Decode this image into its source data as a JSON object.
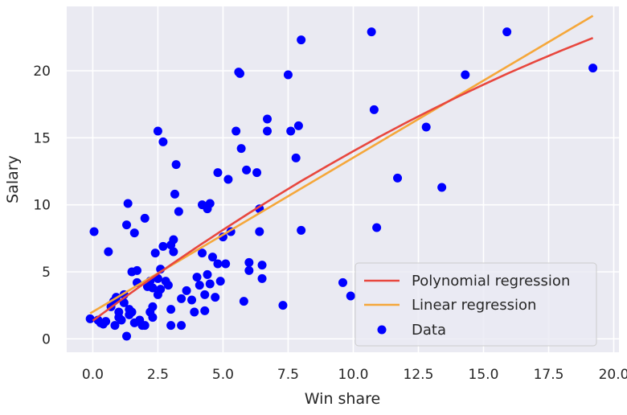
{
  "chart_data": {
    "type": "scatter",
    "xlabel": "Win share",
    "ylabel": "Salary",
    "xlim": [
      -1.0,
      20.2
    ],
    "ylim": [
      -1.0,
      24.8
    ],
    "x_ticks": [
      0.0,
      2.5,
      5.0,
      7.5,
      10.0,
      12.5,
      15.0,
      17.5,
      20.0
    ],
    "x_tick_labels": [
      "0.0",
      "2.5",
      "5.0",
      "7.5",
      "10.0",
      "12.5",
      "15.0",
      "17.5",
      "20.0"
    ],
    "y_ticks": [
      0,
      5,
      10,
      15,
      20
    ],
    "y_tick_labels": [
      "0",
      "5",
      "10",
      "15",
      "20"
    ],
    "grid": true,
    "legend_position": "bottom-right",
    "colors": {
      "background": "#eaeaf2",
      "grid": "#ffffff",
      "data": "#0000ff",
      "polynomial": "#e8473e",
      "linear": "#f5a73a"
    },
    "series": [
      {
        "name": "Polynomial regression",
        "type": "line",
        "x": [
          0,
          1,
          2,
          3,
          4,
          5,
          6,
          7,
          8,
          9,
          10,
          11,
          12,
          13,
          14,
          15,
          16,
          17,
          18,
          19.2
        ],
        "y": [
          1.35,
          2.78,
          4.17,
          5.53,
          6.85,
          8.13,
          9.38,
          10.59,
          11.77,
          12.9,
          14.0,
          15.07,
          16.1,
          17.09,
          18.05,
          18.97,
          19.86,
          20.7,
          21.52,
          22.45
        ]
      },
      {
        "name": "Linear regression",
        "type": "line",
        "x": [
          -0.1,
          19.2
        ],
        "y": [
          1.9,
          24.1
        ]
      },
      {
        "name": "Data",
        "type": "scatter",
        "points": [
          [
            -0.1,
            1.5
          ],
          [
            0.05,
            8.0
          ],
          [
            0.2,
            1.4
          ],
          [
            0.3,
            1.2
          ],
          [
            0.4,
            1.1
          ],
          [
            0.5,
            1.3
          ],
          [
            0.6,
            6.5
          ],
          [
            0.7,
            2.4
          ],
          [
            0.8,
            2.8
          ],
          [
            0.85,
            1.0
          ],
          [
            0.9,
            3.1
          ],
          [
            1.0,
            1.6
          ],
          [
            1.0,
            2.0
          ],
          [
            1.1,
            1.4
          ],
          [
            1.2,
            2.7
          ],
          [
            1.2,
            3.3
          ],
          [
            1.3,
            8.5
          ],
          [
            1.3,
            0.2
          ],
          [
            1.35,
            10.1
          ],
          [
            1.4,
            2.2
          ],
          [
            1.4,
            1.8
          ],
          [
            1.5,
            2.0
          ],
          [
            1.5,
            5.0
          ],
          [
            1.6,
            1.2
          ],
          [
            1.6,
            7.9
          ],
          [
            1.7,
            5.1
          ],
          [
            1.7,
            4.2
          ],
          [
            1.8,
            1.4
          ],
          [
            1.9,
            1.0
          ],
          [
            2.0,
            1.0
          ],
          [
            2.0,
            9.0
          ],
          [
            2.1,
            3.9
          ],
          [
            2.2,
            4.3
          ],
          [
            2.2,
            2.0
          ],
          [
            2.3,
            1.6
          ],
          [
            2.3,
            2.4
          ],
          [
            2.3,
            3.8
          ],
          [
            2.4,
            6.4
          ],
          [
            2.5,
            3.3
          ],
          [
            2.5,
            4.5
          ],
          [
            2.5,
            15.5
          ],
          [
            2.6,
            5.2
          ],
          [
            2.6,
            3.7
          ],
          [
            2.7,
            14.7
          ],
          [
            2.7,
            6.9
          ],
          [
            2.8,
            4.3
          ],
          [
            2.9,
            4.0
          ],
          [
            3.0,
            2.2
          ],
          [
            3.0,
            1.0
          ],
          [
            3.0,
            7.0
          ],
          [
            3.1,
            7.4
          ],
          [
            3.1,
            6.5
          ],
          [
            3.15,
            10.8
          ],
          [
            3.2,
            13.0
          ],
          [
            3.3,
            9.5
          ],
          [
            3.4,
            3.0
          ],
          [
            3.4,
            1.0
          ],
          [
            3.6,
            3.6
          ],
          [
            3.8,
            2.9
          ],
          [
            3.9,
            2.0
          ],
          [
            4.0,
            4.6
          ],
          [
            4.1,
            4.0
          ],
          [
            4.2,
            6.4
          ],
          [
            4.2,
            10.0
          ],
          [
            4.3,
            3.3
          ],
          [
            4.3,
            2.1
          ],
          [
            4.4,
            9.7
          ],
          [
            4.4,
            4.8
          ],
          [
            4.5,
            10.1
          ],
          [
            4.5,
            4.1
          ],
          [
            4.6,
            6.1
          ],
          [
            4.7,
            3.1
          ],
          [
            4.8,
            5.6
          ],
          [
            4.8,
            12.4
          ],
          [
            4.9,
            4.3
          ],
          [
            5.0,
            7.6
          ],
          [
            5.1,
            5.6
          ],
          [
            5.2,
            11.9
          ],
          [
            5.3,
            8.0
          ],
          [
            5.5,
            15.5
          ],
          [
            5.6,
            19.9
          ],
          [
            5.65,
            19.8
          ],
          [
            5.7,
            14.2
          ],
          [
            5.8,
            2.8
          ],
          [
            5.9,
            12.6
          ],
          [
            6.0,
            5.7
          ],
          [
            6.0,
            5.1
          ],
          [
            6.3,
            12.4
          ],
          [
            6.4,
            9.7
          ],
          [
            6.4,
            8.0
          ],
          [
            6.5,
            5.5
          ],
          [
            6.5,
            4.5
          ],
          [
            6.7,
            16.4
          ],
          [
            6.7,
            15.5
          ],
          [
            7.3,
            2.5
          ],
          [
            7.5,
            19.7
          ],
          [
            7.6,
            15.5
          ],
          [
            7.8,
            13.5
          ],
          [
            7.9,
            15.9
          ],
          [
            8.0,
            8.1
          ],
          [
            8.0,
            22.3
          ],
          [
            9.6,
            4.2
          ],
          [
            9.9,
            3.2
          ],
          [
            10.7,
            22.9
          ],
          [
            10.8,
            17.1
          ],
          [
            10.9,
            8.3
          ],
          [
            11.7,
            12.0
          ],
          [
            12.8,
            15.8
          ],
          [
            13.4,
            11.3
          ],
          [
            14.3,
            19.7
          ],
          [
            15.9,
            22.9
          ],
          [
            19.2,
            20.2
          ]
        ]
      }
    ]
  }
}
